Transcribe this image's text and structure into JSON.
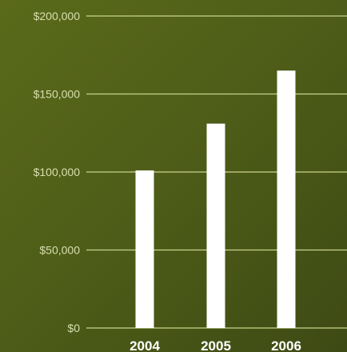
{
  "chart_data": {
    "type": "bar",
    "categories": [
      "2004",
      "2005",
      "2006"
    ],
    "values": [
      101000,
      131000,
      165000
    ],
    "yticks": [
      "$0",
      "$50,000",
      "$100,000",
      "$150,000",
      "$200,000"
    ],
    "ytick_values": [
      0,
      50000,
      100000,
      150000,
      200000
    ],
    "ylim": [
      0,
      200000
    ],
    "grid": true,
    "colors": {
      "background": "#4f5e18",
      "bar": "#ffffff",
      "grid": "#c9d28a",
      "tick_text": "#d8dfb0",
      "category_text": "#ffffff"
    }
  }
}
